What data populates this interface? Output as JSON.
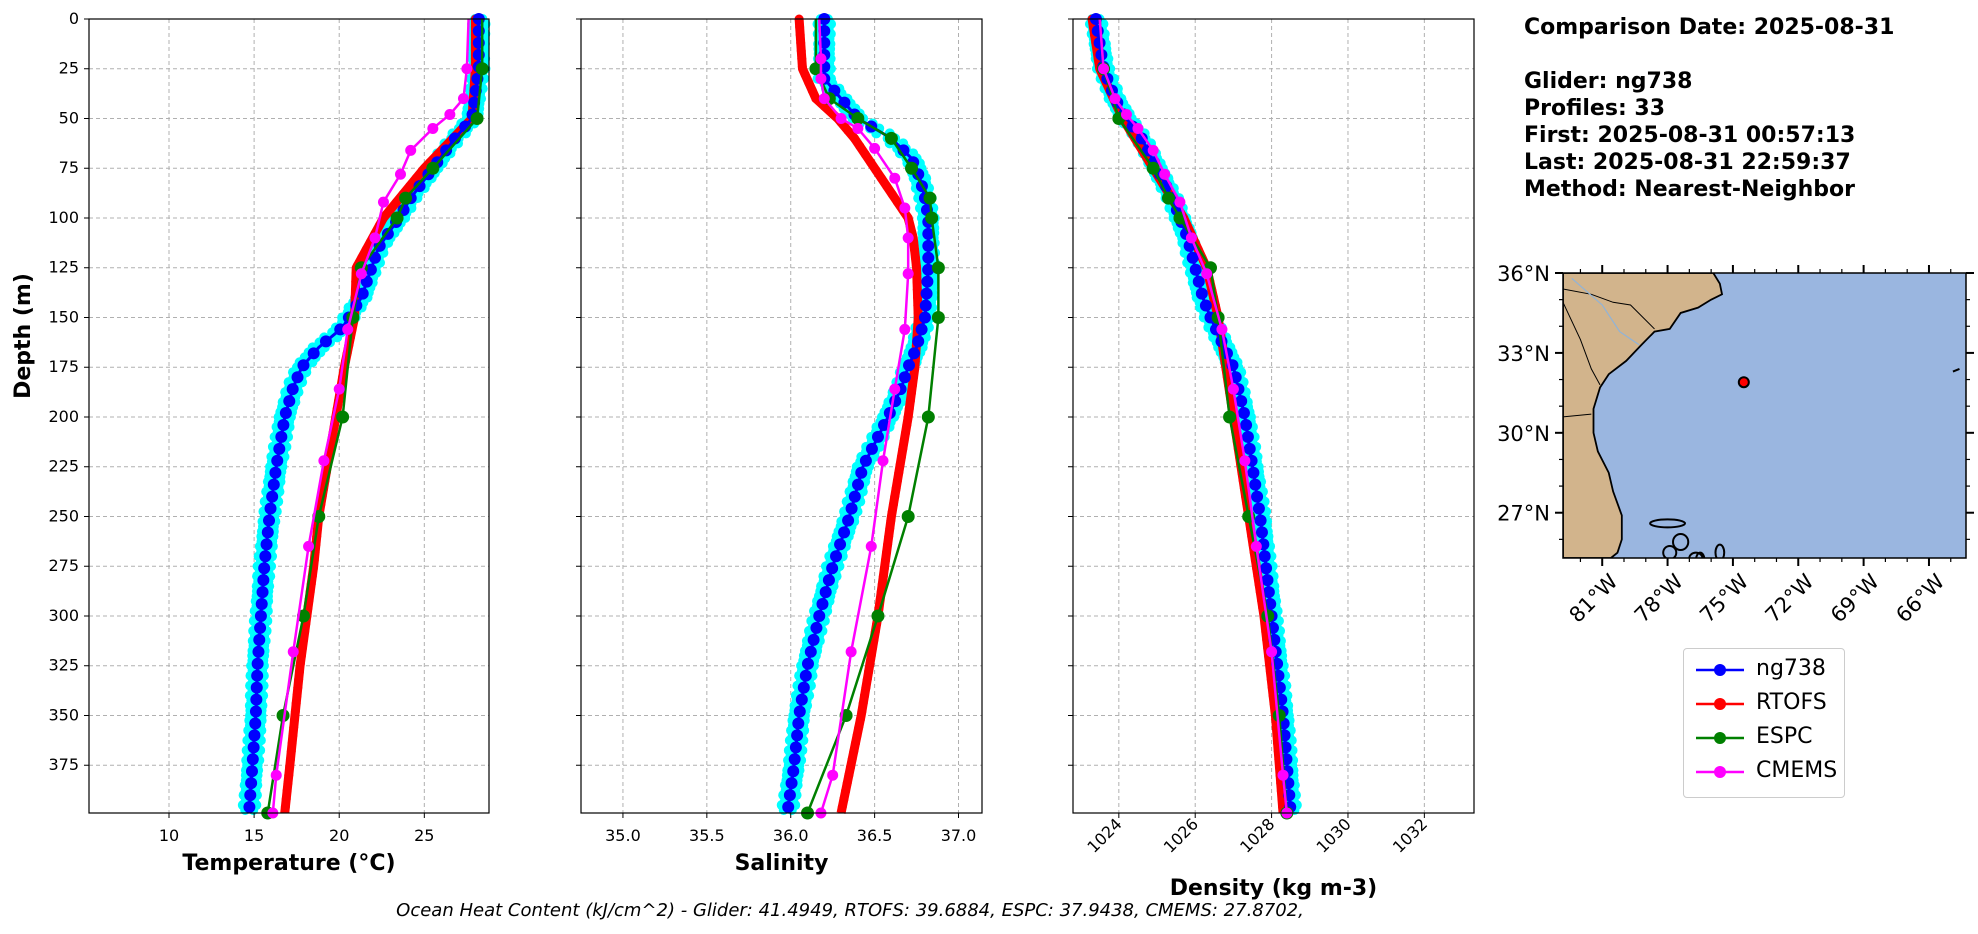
{
  "info": {
    "comparison": "Comparison Date: 2025-08-31",
    "glider": "Glider: ng738",
    "profiles": "Profiles: 33",
    "first": "First: 2025-08-31 00:57:13",
    "last": "Last: 2025-08-31 22:59:37",
    "method": "Method: Nearest-Neighbor"
  },
  "footer": "Ocean Heat Content (kJ/cm^2) - Glider: 41.4949,  RTOFS: 39.6884,  ESPC: 37.9438,  CMEMS: 27.8702,",
  "legend": [
    {
      "name": "ng738",
      "color": "#0000ff"
    },
    {
      "name": "RTOFS",
      "color": "#ff0000"
    },
    {
      "name": "ESPC",
      "color": "#008000"
    },
    {
      "name": "CMEMS",
      "color": "#ff00ff"
    }
  ],
  "colors": {
    "glider": "#0000ff",
    "glider_envelope": "#00ffff",
    "rtofs": "#ff0000",
    "espc": "#008000",
    "cmems": "#ff00ff",
    "ocean": "#9ab6e0",
    "land": "#d2b48c"
  },
  "chart_data": [
    {
      "type": "line",
      "xlabel": "Temperature (°C)",
      "ylabel": "Depth (m)",
      "xlim": [
        5.3,
        28.8
      ],
      "ylim": [
        399,
        0
      ],
      "xticks": [
        "10",
        "15",
        "20",
        "25"
      ],
      "xtick_values": [
        10,
        15,
        20,
        25
      ],
      "yticks": [
        "0",
        "25",
        "50",
        "75",
        "100",
        "125",
        "150",
        "175",
        "200",
        "225",
        "250",
        "275",
        "300",
        "325",
        "350",
        "375"
      ],
      "ytick_values": [
        0,
        25,
        50,
        75,
        100,
        125,
        150,
        175,
        200,
        225,
        250,
        275,
        300,
        325,
        350,
        375
      ],
      "grid": true,
      "series": [
        {
          "name": "ng738",
          "depth": [
            0,
            25,
            50,
            60,
            75,
            90,
            100,
            115,
            125,
            140,
            155,
            165,
            175,
            185,
            200,
            225,
            250,
            275,
            300,
            325,
            350,
            375,
            399
          ],
          "values": [
            28.2,
            28.2,
            27.8,
            26.8,
            25.5,
            24.2,
            23.5,
            22.3,
            21.9,
            21.3,
            20.2,
            18.8,
            17.8,
            17.3,
            16.8,
            16.3,
            15.9,
            15.6,
            15.4,
            15.2,
            15.1,
            14.9,
            14.7
          ]
        },
        {
          "name": "RTOFS",
          "depth": [
            0,
            25,
            50,
            75,
            100,
            125,
            150,
            175,
            200,
            225,
            250,
            275,
            300,
            325,
            350,
            375,
            399
          ],
          "values": [
            28.0,
            28.0,
            27.8,
            25.0,
            22.6,
            21.0,
            20.9,
            20.3,
            19.8,
            19.3,
            18.8,
            18.5,
            18.1,
            17.7,
            17.4,
            17.1,
            16.8
          ]
        },
        {
          "name": "ESPC",
          "depth": [
            0,
            25,
            50,
            75,
            90,
            100,
            125,
            150,
            200,
            250,
            300,
            350,
            399
          ],
          "values": [
            28.4,
            28.4,
            28.1,
            25.5,
            23.9,
            23.4,
            21.3,
            20.8,
            20.2,
            18.8,
            17.9,
            16.7,
            15.8
          ]
        },
        {
          "name": "CMEMS",
          "depth": [
            0,
            25,
            40,
            48,
            55,
            66,
            78,
            92,
            110,
            128,
            156,
            186,
            222,
            265,
            318,
            380,
            399
          ],
          "values": [
            27.6,
            27.5,
            27.3,
            26.5,
            25.5,
            24.2,
            23.6,
            22.6,
            22.1,
            21.3,
            20.5,
            20.0,
            19.1,
            18.2,
            17.3,
            16.3,
            16.1
          ]
        }
      ]
    },
    {
      "type": "line",
      "xlabel": "Salinity",
      "ylabel": "",
      "xlim": [
        34.75,
        37.14
      ],
      "ylim": [
        399,
        0
      ],
      "xticks": [
        "35.0",
        "35.5",
        "36.0",
        "36.5",
        "37.0"
      ],
      "xtick_values": [
        35.0,
        35.5,
        36.0,
        36.5,
        37.0
      ],
      "yticks": [],
      "ytick_values": [
        0,
        25,
        50,
        75,
        100,
        125,
        150,
        175,
        200,
        225,
        250,
        275,
        300,
        325,
        350,
        375
      ],
      "grid": true,
      "series": [
        {
          "name": "ng738",
          "depth": [
            0,
            20,
            30,
            40,
            50,
            60,
            70,
            80,
            90,
            100,
            125,
            150,
            165,
            175,
            185,
            200,
            225,
            250,
            275,
            300,
            325,
            350,
            375,
            399
          ],
          "values": [
            36.2,
            36.2,
            36.2,
            36.3,
            36.4,
            36.6,
            36.72,
            36.77,
            36.8,
            36.82,
            36.82,
            36.8,
            36.75,
            36.7,
            36.66,
            36.58,
            36.43,
            36.35,
            36.25,
            36.17,
            36.1,
            36.05,
            36.02,
            35.98
          ]
        },
        {
          "name": "RTOFS",
          "depth": [
            0,
            25,
            40,
            50,
            60,
            75,
            90,
            100,
            110,
            125,
            150,
            175,
            200,
            250,
            300,
            350,
            399
          ],
          "values": [
            36.05,
            36.07,
            36.15,
            36.28,
            36.38,
            36.5,
            36.62,
            36.7,
            36.73,
            36.75,
            36.76,
            36.74,
            36.7,
            36.6,
            36.52,
            36.42,
            36.3
          ]
        },
        {
          "name": "ESPC",
          "depth": [
            0,
            25,
            40,
            50,
            60,
            75,
            90,
            100,
            125,
            150,
            200,
            250,
            300,
            350,
            399
          ],
          "values": [
            36.15,
            36.15,
            36.23,
            36.4,
            36.6,
            36.72,
            36.83,
            36.84,
            36.88,
            36.88,
            36.82,
            36.7,
            36.52,
            36.33,
            36.1
          ]
        },
        {
          "name": "CMEMS",
          "depth": [
            0,
            20,
            30,
            40,
            50,
            55,
            65,
            80,
            95,
            110,
            128,
            156,
            186,
            222,
            265,
            318,
            380,
            399
          ],
          "values": [
            36.17,
            36.18,
            36.18,
            36.2,
            36.3,
            36.4,
            36.5,
            36.62,
            36.68,
            36.7,
            36.7,
            36.68,
            36.62,
            36.55,
            36.48,
            36.36,
            36.25,
            36.18
          ]
        }
      ]
    },
    {
      "type": "line",
      "xlabel": "Density (kg m-3)",
      "ylabel": "",
      "xlim": [
        1022.8,
        1033.3
      ],
      "ylim": [
        399,
        0
      ],
      "xticks": [
        "1024",
        "1026",
        "1028",
        "1030",
        "1032"
      ],
      "xtick_values": [
        1024,
        1026,
        1028,
        1030,
        1032
      ],
      "yticks": [],
      "ytick_values": [
        0,
        25,
        50,
        75,
        100,
        125,
        150,
        175,
        200,
        225,
        250,
        275,
        300,
        325,
        350,
        375
      ],
      "grid": true,
      "series": [
        {
          "name": "ng738",
          "depth": [
            0,
            25,
            40,
            50,
            60,
            75,
            90,
            100,
            110,
            125,
            140,
            150,
            175,
            200,
            250,
            300,
            350,
            399
          ],
          "values": [
            1023.4,
            1023.6,
            1023.9,
            1024.2,
            1024.6,
            1025.0,
            1025.4,
            1025.6,
            1025.8,
            1026.0,
            1026.2,
            1026.4,
            1027.0,
            1027.3,
            1027.7,
            1028.0,
            1028.3,
            1028.5
          ]
        },
        {
          "name": "RTOFS",
          "depth": [
            0,
            25,
            50,
            75,
            100,
            125,
            150,
            175,
            200,
            250,
            300,
            350,
            399
          ],
          "values": [
            1023.3,
            1023.5,
            1024.1,
            1024.9,
            1025.7,
            1026.3,
            1026.6,
            1026.8,
            1027.0,
            1027.4,
            1027.8,
            1028.1,
            1028.3
          ]
        },
        {
          "name": "ESPC",
          "depth": [
            0,
            25,
            50,
            75,
            90,
            100,
            125,
            150,
            200,
            250,
            300,
            350,
            399
          ],
          "values": [
            1023.5,
            1023.6,
            1024.0,
            1024.9,
            1025.3,
            1025.6,
            1026.4,
            1026.6,
            1026.9,
            1027.4,
            1027.9,
            1028.2,
            1028.4
          ]
        },
        {
          "name": "CMEMS",
          "depth": [
            0,
            25,
            40,
            48,
            55,
            66,
            78,
            92,
            110,
            128,
            156,
            186,
            222,
            265,
            318,
            380,
            399
          ],
          "values": [
            1023.5,
            1023.6,
            1023.9,
            1024.2,
            1024.5,
            1024.9,
            1025.2,
            1025.6,
            1025.9,
            1026.3,
            1026.7,
            1027.0,
            1027.3,
            1027.6,
            1028.0,
            1028.3,
            1028.4
          ]
        }
      ]
    },
    {
      "type": "map",
      "lon_ticks": [
        "81°W",
        "78°W",
        "75°W",
        "72°W",
        "69°W",
        "66°W"
      ],
      "lon_values": [
        -81,
        -78,
        -75,
        -72,
        -69,
        -66
      ],
      "lat_ticks": [
        "36°N",
        "33°N",
        "30°N",
        "27°N"
      ],
      "lat_values": [
        36,
        33,
        30,
        27
      ],
      "extent": [
        -82.8,
        -64.3,
        25.3,
        36.0
      ],
      "glider_position": {
        "lon": -74.5,
        "lat": 31.9
      }
    }
  ]
}
